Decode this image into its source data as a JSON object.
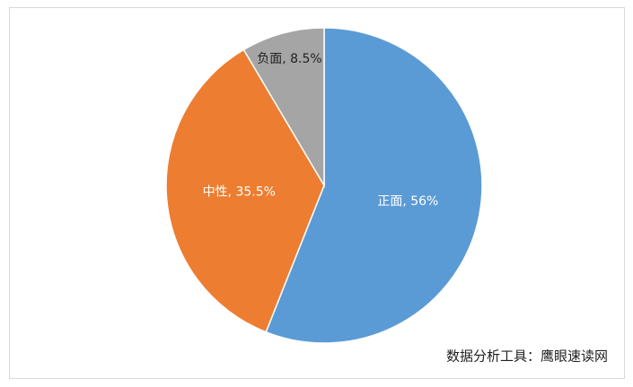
{
  "chart_data": {
    "type": "pie",
    "values": [
      56,
      35.5,
      8.5
    ],
    "value_labels": [
      "正面, 56%",
      "中性, 35.5%",
      "负面, 8.5%"
    ],
    "colors": [
      "#5b9bd5",
      "#ed7d31",
      "#a5a5a5"
    ],
    "annotation": "数据分析工具：鹰眼速读网"
  }
}
